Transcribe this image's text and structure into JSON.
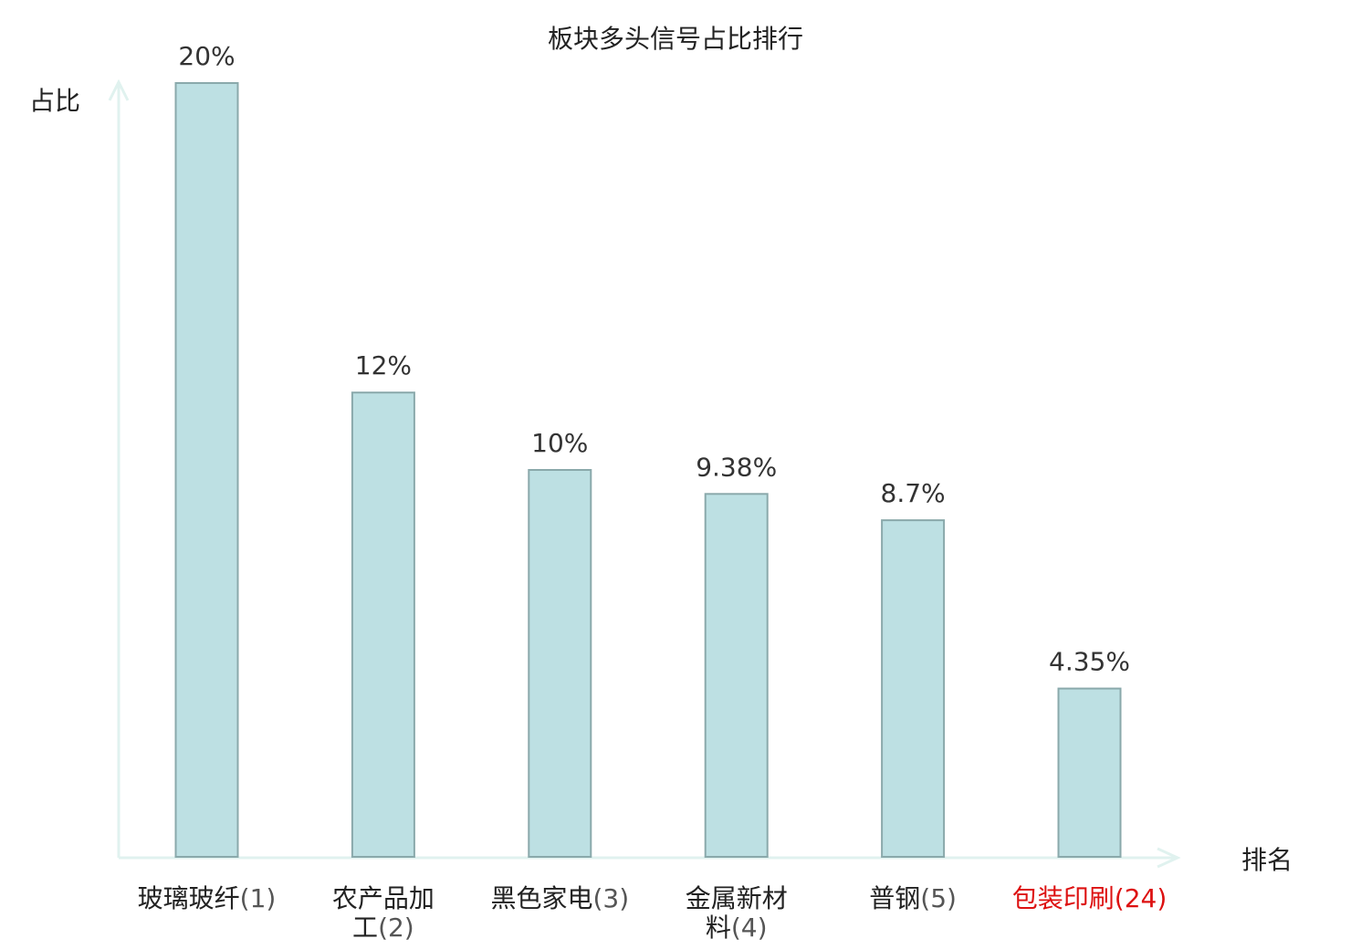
{
  "chart_data": {
    "type": "bar",
    "title": "板块多头信号占比排行",
    "xlabel": "排名",
    "ylabel": "占比",
    "categories": [
      {
        "name_lines": [
          "玻璃玻纤"
        ],
        "rank": "(1)",
        "highlight": false
      },
      {
        "name_lines": [
          "农产品加",
          "工"
        ],
        "rank": "(2)",
        "highlight": false
      },
      {
        "name_lines": [
          "黑色家电"
        ],
        "rank": "(3)",
        "highlight": false
      },
      {
        "name_lines": [
          "金属新材",
          "料"
        ],
        "rank": "(4)",
        "highlight": false
      },
      {
        "name_lines": [
          "普钢"
        ],
        "rank": "(5)",
        "highlight": false
      },
      {
        "name_lines": [
          "包装印刷"
        ],
        "rank": "(24)",
        "highlight": true
      }
    ],
    "values": [
      20,
      12,
      10,
      9.38,
      8.7,
      4.35
    ],
    "value_labels": [
      "20%",
      "12%",
      "10%",
      "9.38%",
      "8.7%",
      "4.35%"
    ],
    "ylim": [
      0,
      20
    ],
    "grid": false,
    "colors": {
      "bar_fill": "#bde0e3",
      "bar_stroke": "#8aa9ab",
      "axis": "#e0f2ef",
      "highlight_text": "#dd1111",
      "normal_text": "#222222",
      "rank_text": "#555555"
    }
  }
}
